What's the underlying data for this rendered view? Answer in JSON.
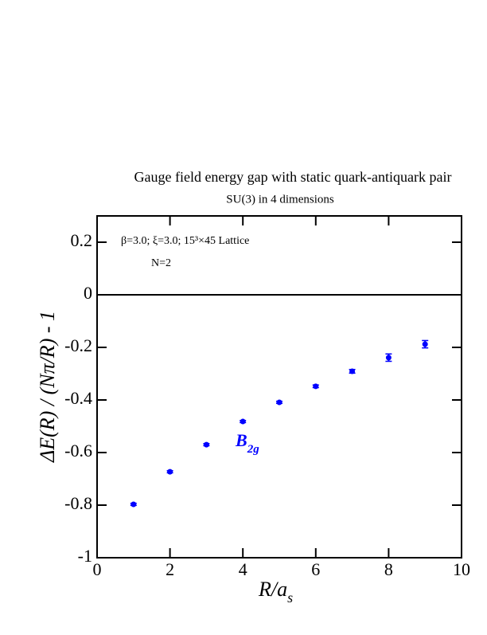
{
  "chart_data": {
    "type": "scatter",
    "title": "Gauge field energy gap with static quark-antiquark pair",
    "subtitle": "SU(3) in 4 dimensions",
    "annotations": [
      "β=3.0; ξ=3.0; 15³×45 Lattice",
      "N=2"
    ],
    "series_label": {
      "text": "B",
      "subscript": "2g"
    },
    "x_label": {
      "text": "R/a",
      "subscript": "s"
    },
    "y_label": "ΔE(R) / (Nπ/R) - 1",
    "x": [
      1,
      2,
      3,
      4,
      5,
      6,
      7,
      8,
      9
    ],
    "values": [
      -0.797,
      -0.673,
      -0.57,
      -0.482,
      -0.409,
      -0.348,
      -0.291,
      -0.239,
      -0.188
    ],
    "errors": [
      0.004,
      0.004,
      0.004,
      0.004,
      0.004,
      0.005,
      0.007,
      0.014,
      0.014
    ],
    "color": "#0000ff",
    "xlim": [
      0,
      10
    ],
    "xticks": [
      0,
      2,
      4,
      6,
      8,
      10
    ],
    "ylim": [
      -1,
      0.3
    ],
    "yticks": [
      -1,
      -0.8,
      -0.6,
      -0.4,
      -0.2,
      0,
      0.2
    ],
    "zero_line": true
  }
}
